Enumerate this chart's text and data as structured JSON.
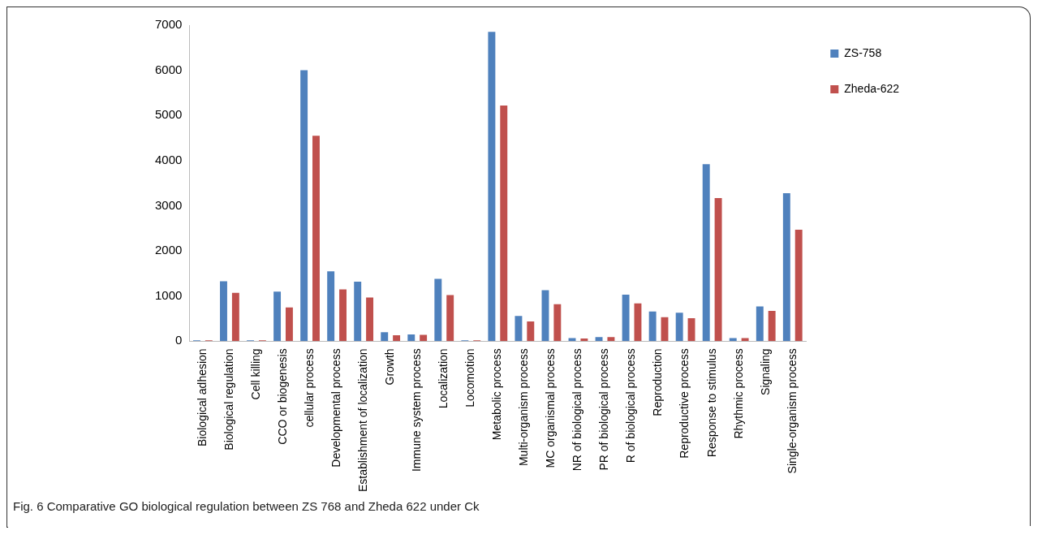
{
  "chart_data": {
    "type": "bar",
    "categories": [
      "Biological adhesion",
      "Biological regulation",
      "Cell killing",
      "CCO or biogenesis",
      "cellular process",
      "Developmental process",
      "Establishment of localization",
      "Growth",
      "Immune system process",
      "Localization",
      "Locomotion",
      "Metabolic process",
      "Multi-organism process",
      "MC organismal process",
      "NR of biological process",
      "PR of biological process",
      "R of biological process",
      "Reproduction",
      "Reproductive process",
      "Response to stimulus",
      "Rhythmic process",
      "Signaling",
      "Single-organism process"
    ],
    "series": [
      {
        "name": "ZS-758",
        "color": "#4f81bd",
        "values": [
          20,
          1330,
          20,
          1100,
          6000,
          1550,
          1320,
          200,
          150,
          1380,
          20,
          6850,
          560,
          1130,
          70,
          90,
          1030,
          660,
          630,
          3920,
          70,
          770,
          3280
        ]
      },
      {
        "name": "Zheda-622",
        "color": "#c0504d",
        "values": [
          20,
          1070,
          20,
          750,
          4550,
          1150,
          970,
          130,
          140,
          1020,
          20,
          5220,
          440,
          820,
          60,
          90,
          840,
          530,
          510,
          3170,
          70,
          670,
          2470
        ]
      }
    ],
    "ylim": [
      0,
      7000
    ],
    "yticks": [
      0,
      1000,
      2000,
      3000,
      4000,
      5000,
      6000,
      7000
    ],
    "grid": false,
    "legend": "top right",
    "annotations": [
      "Fig. 6 Comparative GO biological regulation between ZS 768 and Zheda 622 under Ck"
    ]
  }
}
